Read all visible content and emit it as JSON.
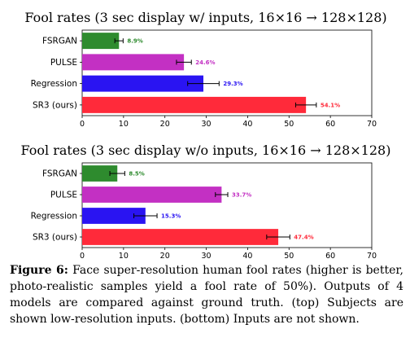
{
  "chart_data": [
    {
      "type": "bar",
      "orientation": "horizontal",
      "title": "Fool rates (3 sec display w/ inputs, 16×16 → 128×128)",
      "categories": [
        "FSRGAN",
        "PULSE",
        "Regression",
        "SR3 (ours)"
      ],
      "values": [
        8.9,
        24.6,
        29.3,
        54.1
      ],
      "errors": [
        1.0,
        1.8,
        3.8,
        2.5
      ],
      "data_labels": [
        "8.9%",
        "24.6%",
        "29.3%",
        "54.1%"
      ],
      "colors": [
        "#2e8b2e",
        "#c330c3",
        "#2a14f2",
        "#ff2a3a"
      ],
      "label_colors": [
        "#2e8b2e",
        "#c330c3",
        "#2a14f2",
        "#ff2a3a"
      ],
      "xlim": [
        0,
        70
      ],
      "xticks": [
        0,
        10,
        20,
        30,
        40,
        50,
        60,
        70
      ],
      "grid": false
    },
    {
      "type": "bar",
      "orientation": "horizontal",
      "title": "Fool rates (3 sec display w/o inputs, 16×16 → 128×128)",
      "categories": [
        "FSRGAN",
        "PULSE",
        "Regression",
        "SR3 (ours)"
      ],
      "values": [
        8.5,
        33.7,
        15.3,
        47.4
      ],
      "errors": [
        1.8,
        1.5,
        2.8,
        2.8
      ],
      "data_labels": [
        "8.5%",
        "33.7%",
        "15.3%",
        "47.4%"
      ],
      "colors": [
        "#2e8b2e",
        "#c330c3",
        "#2a14f2",
        "#ff2a3a"
      ],
      "label_colors": [
        "#2e8b2e",
        "#c330c3",
        "#2a14f2",
        "#ff2a3a"
      ],
      "xlim": [
        0,
        70
      ],
      "xticks": [
        0,
        10,
        20,
        30,
        40,
        50,
        60,
        70
      ],
      "grid": false
    }
  ],
  "caption": {
    "label": "Figure 6:",
    "text": "Face super-resolution human fool rates (higher is better, photo-realistic samples yield a fool rate of 50%). Outputs of 4 models are compared against ground truth. (top) Subjects are shown low-resolution inputs. (bottom) Inputs are not shown."
  }
}
